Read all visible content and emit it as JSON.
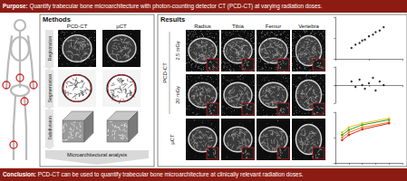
{
  "header": {
    "title": "Purpose:",
    "text": "Quantify trabecular bone microarchitecture with photon-counting detector CT (PCD-CT) at varying radiation doses."
  },
  "methods": {
    "title": "Methods",
    "columns": [
      "PCD-CT",
      "µCT"
    ],
    "steps": [
      "Registration",
      "Segmentation",
      "Subdivision"
    ],
    "result": "Microarchitectural analysis"
  },
  "results": {
    "title": "Results",
    "columns": [
      "Radius",
      "Tibia",
      "Femur",
      "Vertebra"
    ],
    "pcd_label": "PCD-CT",
    "doses": [
      "2.5 mGy",
      "20 mGy"
    ],
    "reference_label": "µCT"
  },
  "footer": {
    "title": "Conclusion:",
    "text": "PCD-CT can be used to quantify trabecular bone microarchitecture at clinically relevant radiation doses."
  },
  "chart_data": [
    {
      "type": "scatter",
      "color": "#000000",
      "grid": false,
      "tick_labels": false,
      "x": [
        0.12,
        0.15,
        0.18,
        0.2,
        0.22,
        0.25,
        0.28,
        0.3,
        0.33,
        0.36
      ],
      "values": [
        0.13,
        0.17,
        0.19,
        0.22,
        0.23,
        0.27,
        0.29,
        0.32,
        0.34,
        0.38
      ],
      "xlim": [
        0,
        0.5
      ],
      "xticks": [
        0,
        0.25,
        0.5
      ],
      "ylim": [
        0,
        0.5
      ],
      "yticks": [
        0,
        0.25,
        0.5
      ]
    },
    {
      "type": "scatter",
      "color": "#000000",
      "grid": false,
      "tick_labels": false,
      "x": [
        0.12,
        0.15,
        0.18,
        0.2,
        0.22,
        0.25,
        0.28,
        0.3,
        0.33,
        0.36
      ],
      "values": [
        0.02,
        -0.01,
        0.03,
        0,
        -0.02,
        0.01,
        0.04,
        -0.03,
        0.02,
        0
      ],
      "xlim": [
        0,
        0.5
      ],
      "xticks": [
        0,
        0.25,
        0.5
      ],
      "ylim": [
        -0.1,
        0.1
      ],
      "yticks": [
        -0.1,
        0,
        0.1
      ]
    },
    {
      "type": "line",
      "grid": false,
      "tick_labels": false,
      "x": [
        2.5,
        5,
        10,
        20
      ],
      "series": [
        {
          "color": "#2ca02c",
          "values": [
            0.55,
            0.65,
            0.75,
            0.85
          ]
        },
        {
          "color": "#ff7f0e",
          "values": [
            0.5,
            0.6,
            0.7,
            0.8
          ]
        },
        {
          "color": "#d62728",
          "values": [
            0.45,
            0.55,
            0.66,
            0.78
          ]
        },
        {
          "color": "#e6c229",
          "values": [
            0.6,
            0.7,
            0.78,
            0.88
          ]
        }
      ],
      "xlim": [
        0,
        25
      ],
      "xticks": [
        0,
        5,
        10,
        15,
        20,
        25
      ],
      "ylim": [
        0,
        1
      ],
      "yticks": [
        0,
        0.5,
        1
      ]
    }
  ]
}
